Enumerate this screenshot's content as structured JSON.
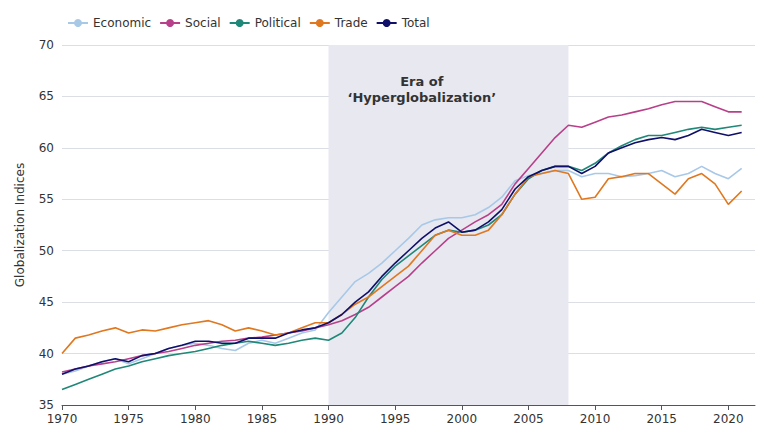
{
  "chart_data": {
    "type": "line",
    "x": [
      1970,
      1971,
      1972,
      1973,
      1974,
      1975,
      1976,
      1977,
      1978,
      1979,
      1980,
      1981,
      1982,
      1983,
      1984,
      1985,
      1986,
      1987,
      1988,
      1989,
      1990,
      1991,
      1992,
      1993,
      1994,
      1995,
      1996,
      1997,
      1998,
      1999,
      2000,
      2001,
      2002,
      2003,
      2004,
      2005,
      2006,
      2007,
      2008,
      2009,
      2010,
      2011,
      2012,
      2013,
      2014,
      2015,
      2016,
      2017,
      2018,
      2019,
      2020,
      2021
    ],
    "series": [
      {
        "name": "Economic",
        "color": "#a8c8e8",
        "values": [
          38.0,
          38.3,
          38.8,
          39.2,
          39.5,
          39.0,
          39.5,
          40.0,
          40.5,
          40.8,
          41.0,
          40.8,
          40.5,
          40.3,
          41.0,
          41.3,
          41.0,
          41.5,
          42.0,
          42.3,
          44.0,
          45.5,
          47.0,
          47.8,
          48.8,
          50.0,
          51.2,
          52.5,
          53.0,
          53.2,
          53.2,
          53.5,
          54.2,
          55.2,
          56.8,
          57.3,
          57.5,
          57.8,
          57.8,
          57.2,
          57.5,
          57.5,
          57.2,
          57.3,
          57.5,
          57.8,
          57.2,
          57.5,
          58.2,
          57.5,
          57.0,
          58.0
        ]
      },
      {
        "name": "Social",
        "color": "#b8408a",
        "values": [
          38.2,
          38.5,
          38.8,
          39.0,
          39.2,
          39.5,
          39.8,
          40.0,
          40.2,
          40.5,
          40.8,
          41.0,
          41.2,
          41.3,
          41.5,
          41.6,
          41.8,
          42.0,
          42.2,
          42.5,
          42.8,
          43.2,
          43.8,
          44.5,
          45.5,
          46.5,
          47.5,
          48.8,
          50.0,
          51.2,
          52.0,
          52.8,
          53.5,
          54.5,
          56.5,
          58.0,
          59.5,
          61.0,
          62.2,
          62.0,
          62.5,
          63.0,
          63.2,
          63.5,
          63.8,
          64.2,
          64.5,
          64.5,
          64.5,
          64.0,
          63.5,
          63.5
        ]
      },
      {
        "name": "Political",
        "color": "#208878",
        "values": [
          36.5,
          37.0,
          37.5,
          38.0,
          38.5,
          38.8,
          39.2,
          39.5,
          39.8,
          40.0,
          40.2,
          40.5,
          40.8,
          41.0,
          41.2,
          41.0,
          40.8,
          41.0,
          41.3,
          41.5,
          41.3,
          42.0,
          43.5,
          45.5,
          47.2,
          48.5,
          49.5,
          50.5,
          51.5,
          52.0,
          51.8,
          52.0,
          52.5,
          53.5,
          55.5,
          57.0,
          57.8,
          58.2,
          58.2,
          57.8,
          58.5,
          59.5,
          60.2,
          60.8,
          61.2,
          61.2,
          61.5,
          61.8,
          62.0,
          61.8,
          62.0,
          62.2
        ]
      },
      {
        "name": "Trade",
        "color": "#e07820",
        "values": [
          40.0,
          41.5,
          41.8,
          42.2,
          42.5,
          42.0,
          42.3,
          42.2,
          42.5,
          42.8,
          43.0,
          43.2,
          42.8,
          42.2,
          42.5,
          42.2,
          41.8,
          42.0,
          42.5,
          43.0,
          43.0,
          43.8,
          44.8,
          45.5,
          46.5,
          47.5,
          48.5,
          50.0,
          51.5,
          52.0,
          51.5,
          51.5,
          52.0,
          53.5,
          55.5,
          57.2,
          57.5,
          57.8,
          57.5,
          55.0,
          55.2,
          57.0,
          57.2,
          57.5,
          57.5,
          56.5,
          55.5,
          57.0,
          57.5,
          56.5,
          54.5,
          55.8
        ]
      },
      {
        "name": "Total",
        "color": "#10106a",
        "values": [
          38.0,
          38.5,
          38.8,
          39.2,
          39.5,
          39.2,
          39.8,
          40.0,
          40.5,
          40.8,
          41.2,
          41.2,
          41.0,
          41.0,
          41.5,
          41.5,
          41.5,
          42.0,
          42.3,
          42.5,
          43.0,
          43.8,
          45.0,
          46.0,
          47.5,
          48.8,
          50.0,
          51.2,
          52.2,
          52.8,
          51.8,
          52.0,
          52.8,
          54.0,
          56.0,
          57.2,
          57.8,
          58.2,
          58.2,
          57.5,
          58.2,
          59.5,
          60.0,
          60.5,
          60.8,
          61.0,
          60.8,
          61.2,
          61.8,
          61.5,
          61.2,
          61.5
        ]
      }
    ],
    "shaded_region": {
      "x": [
        1990,
        2008
      ],
      "color": "#e8e8f0"
    },
    "annotations": [
      {
        "text": "Era of\n‘Hyperglobalization’",
        "x": 1997,
        "y": 67.2
      }
    ],
    "ylabel": "Globalization Indices",
    "xlim": [
      1970,
      2022
    ],
    "xticks": [
      1970,
      1975,
      1980,
      1985,
      1990,
      1995,
      2000,
      2005,
      2010,
      2015,
      2020
    ],
    "ylim": [
      35,
      70
    ],
    "yticks": [
      35,
      40,
      45,
      50,
      55,
      60,
      65,
      70
    ],
    "grid": true,
    "legend": "upper left"
  }
}
